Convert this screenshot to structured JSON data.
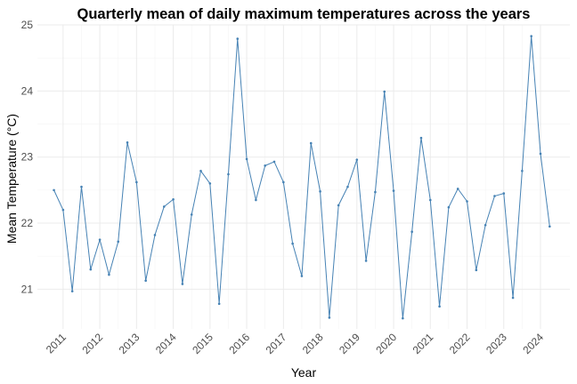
{
  "chart_data": {
    "type": "line",
    "title": "Quarterly mean of daily maximum temperatures across the years",
    "xlabel": "Year",
    "ylabel": "Mean Temperature (°C)",
    "x_tick_labels": [
      "2011",
      "2012",
      "2013",
      "2014",
      "2015",
      "2016",
      "2017",
      "2018",
      "2019",
      "2020",
      "2021",
      "2022",
      "2023",
      "2024"
    ],
    "y_tick_labels": [
      "21",
      "22",
      "23",
      "24",
      "25"
    ],
    "xlim": [
      2010.3,
      2024.8
    ],
    "ylim": [
      20.4,
      25.0
    ],
    "grid": true,
    "legend": "none",
    "series": [
      {
        "color": "#4682b4",
        "x": [
          2010.75,
          2011.0,
          2011.25,
          2011.5,
          2011.75,
          2012.0,
          2012.25,
          2012.5,
          2012.75,
          2013.0,
          2013.25,
          2013.5,
          2013.75,
          2014.0,
          2014.25,
          2014.5,
          2014.75,
          2015.0,
          2015.25,
          2015.5,
          2015.75,
          2016.0,
          2016.25,
          2016.5,
          2016.75,
          2017.0,
          2017.25,
          2017.5,
          2017.75,
          2018.0,
          2018.25,
          2018.5,
          2018.75,
          2019.0,
          2019.25,
          2019.5,
          2019.75,
          2020.0,
          2020.25,
          2020.5,
          2020.75,
          2021.0,
          2021.25,
          2021.5,
          2021.75,
          2022.0,
          2022.25,
          2022.5,
          2022.75,
          2023.0,
          2023.25,
          2023.5,
          2023.75,
          2024.0,
          2024.25
        ],
        "y": [
          22.5,
          22.2,
          20.97,
          22.55,
          21.3,
          21.75,
          21.22,
          21.72,
          23.22,
          22.62,
          21.13,
          21.82,
          22.25,
          22.36,
          21.08,
          22.13,
          22.79,
          22.6,
          20.78,
          22.74,
          24.79,
          22.97,
          22.35,
          22.87,
          22.93,
          22.62,
          21.69,
          21.2,
          23.21,
          22.48,
          20.57,
          22.27,
          22.55,
          22.96,
          21.43,
          22.47,
          23.99,
          22.49,
          20.56,
          21.87,
          23.29,
          22.35,
          20.74,
          22.24,
          22.52,
          22.33,
          21.29,
          21.97,
          22.41,
          22.45,
          20.87,
          22.79,
          24.83,
          23.05,
          21.95
        ]
      }
    ]
  }
}
